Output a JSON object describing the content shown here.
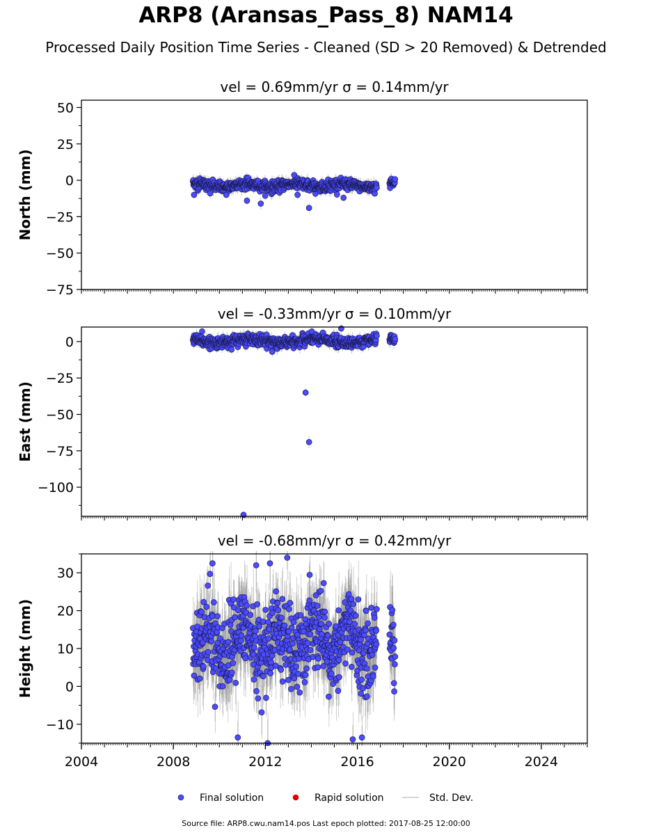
{
  "header": {
    "title": "ARP8 (Aransas_Pass_8) NAM14",
    "subtitle": "Processed Daily Position Time Series - Cleaned (SD > 20 Removed) & Detrended"
  },
  "footer": {
    "source": "Source file: ARP8.cwu.nam14.pos  Last epoch plotted: 2017-08-25 12:00:00"
  },
  "colors": {
    "final": "#4b4bff",
    "rapid": "#e00000",
    "stddev": "#c8c8c8"
  },
  "chart_data": [
    {
      "type": "scatter",
      "title": "vel = 0.69mm/yr   σ = 0.14mm/yr",
      "ylabel": "North (mm)",
      "xlim": [
        2004,
        2026
      ],
      "ylim": [
        -75,
        55
      ],
      "yticks": [
        50,
        25,
        0,
        -25,
        -50,
        -75
      ],
      "ytick_labels": [
        "50",
        "25",
        "0",
        "−25",
        "−50",
        "−75"
      ],
      "segments": [
        [
          2008.85,
          2016.85
        ],
        [
          2017.4,
          2017.65
        ]
      ],
      "baseline": 0.69,
      "noise": 2.3,
      "err": 3,
      "outliers": [
        [
          2008.9,
          -10
        ],
        [
          2009.6,
          -9
        ],
        [
          2010.3,
          -10
        ],
        [
          2011.2,
          -14
        ],
        [
          2011.8,
          -16
        ],
        [
          2013.9,
          -19
        ],
        [
          2015.4,
          -12
        ],
        [
          2013.4,
          -10
        ]
      ]
    },
    {
      "type": "scatter",
      "title": "vel = -0.33mm/yr   σ = 0.10mm/yr",
      "ylabel": "East (mm)",
      "xlim": [
        2004,
        2026
      ],
      "ylim": [
        -120,
        10
      ],
      "yticks": [
        0,
        -25,
        -50,
        -75,
        -100
      ],
      "ytick_labels": [
        "0",
        "−25",
        "−50",
        "−75",
        "−100"
      ],
      "segments": [
        [
          2008.85,
          2016.85
        ],
        [
          2017.4,
          2017.65
        ]
      ],
      "baseline": -0.33,
      "noise": 2.5,
      "err": 3,
      "outliers": [
        [
          2013.75,
          -35
        ],
        [
          2013.9,
          -69
        ],
        [
          2011.05,
          -119
        ],
        [
          2009.25,
          7
        ],
        [
          2015.3,
          9
        ],
        [
          2012.3,
          -7
        ]
      ]
    },
    {
      "type": "scatter",
      "title": "vel = -0.68mm/yr   σ = 0.42mm/yr",
      "ylabel": "Height (mm)",
      "xlim": [
        2004,
        2026
      ],
      "ylim": [
        -15,
        35
      ],
      "yticks": [
        30,
        20,
        10,
        0,
        -10
      ],
      "ytick_labels": [
        "30",
        "20",
        "10",
        "0",
        "−10"
      ],
      "xticks": [
        2004,
        2008,
        2012,
        2016,
        2020,
        2024
      ],
      "xtick_labels": [
        "2004",
        "2008",
        "2012",
        "2016",
        "2020",
        "2024"
      ],
      "segments": [
        [
          2008.85,
          2016.85
        ],
        [
          2017.4,
          2017.65
        ]
      ],
      "baseline": 11.5,
      "noise": 6.5,
      "err": 5,
      "outliers": [
        [
          2009.7,
          32.5
        ],
        [
          2012.2,
          32.5
        ],
        [
          2012.95,
          34
        ],
        [
          2011.6,
          32
        ],
        [
          2010.8,
          -13.5
        ],
        [
          2012.1,
          -15
        ],
        [
          2016.2,
          -13.5
        ],
        [
          2015.8,
          -14
        ]
      ]
    }
  ],
  "legend": {
    "items": [
      {
        "label": "Final solution",
        "kind": "dot",
        "color": "#4b4bff"
      },
      {
        "label": "Rapid solution",
        "kind": "dot",
        "color": "#e00000"
      },
      {
        "label": "Std. Dev.",
        "kind": "line",
        "color": "#c8c8c8"
      }
    ]
  }
}
